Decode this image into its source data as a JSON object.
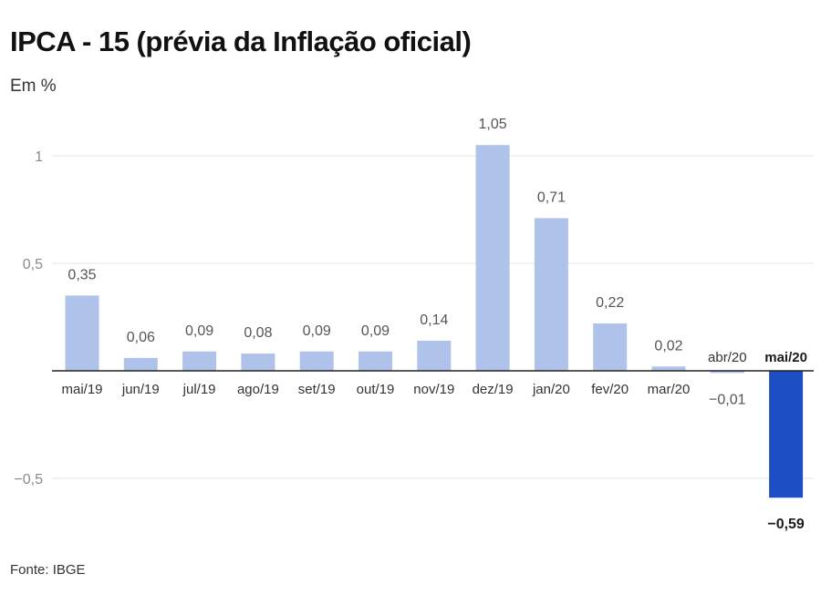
{
  "title": "IPCA - 15 (prévia da Inflação oficial)",
  "subtitle": "Em %",
  "source": "Fonte: IBGE",
  "colors": {
    "bar": "#aec2ea",
    "highlight_bar": "#1c4ec4",
    "grid": "#e3e3e3",
    "axis": "#222222"
  },
  "chart_data": {
    "type": "bar",
    "categories": [
      "mai/19",
      "jun/19",
      "jul/19",
      "ago/19",
      "set/19",
      "out/19",
      "nov/19",
      "dez/19",
      "jan/20",
      "fev/20",
      "mar/20",
      "abr/20",
      "mai/20"
    ],
    "values": [
      0.35,
      0.06,
      0.09,
      0.08,
      0.09,
      0.09,
      0.14,
      1.05,
      0.71,
      0.22,
      0.02,
      -0.01,
      -0.59
    ],
    "value_labels": [
      "0,35",
      "0,06",
      "0,09",
      "0,08",
      "0,09",
      "0,09",
      "0,14",
      "1,05",
      "0,71",
      "0,22",
      "0,02",
      "−0,01",
      "−0,59"
    ],
    "highlight_index": 12,
    "yticks": [
      -0.5,
      0.5,
      1
    ],
    "ytick_labels": [
      "−0,5",
      "0,5",
      "1"
    ],
    "ylim": [
      -0.7,
      1.25
    ],
    "grid": true
  }
}
